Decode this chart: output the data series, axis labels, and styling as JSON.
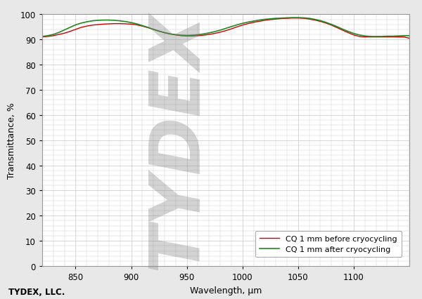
{
  "xlabel": "Wavelength, μm",
  "ylabel": "Transmittance, %",
  "xlim": [
    820,
    1150
  ],
  "ylim": [
    0,
    100
  ],
  "xticks": [
    850,
    900,
    950,
    1000,
    1050,
    1100
  ],
  "yticks": [
    0,
    10,
    20,
    30,
    40,
    50,
    60,
    70,
    80,
    90,
    100
  ],
  "legend_labels": [
    "CQ 1 mm before cryocycling",
    "CQ 1 mm after cryocycling"
  ],
  "line_colors": [
    "#cc0000",
    "#228822"
  ],
  "footer_text": "TYDEX, LLC.",
  "background_color": "#e8e8e8",
  "plot_bg_color": "#ffffff",
  "grid_color": "#c8c8c8",
  "red_x": [
    820,
    825,
    830,
    835,
    840,
    845,
    850,
    855,
    860,
    865,
    870,
    875,
    880,
    885,
    890,
    895,
    900,
    905,
    910,
    915,
    920,
    925,
    930,
    935,
    940,
    945,
    950,
    955,
    960,
    965,
    970,
    975,
    980,
    985,
    990,
    995,
    1000,
    1005,
    1010,
    1015,
    1020,
    1025,
    1030,
    1035,
    1040,
    1045,
    1050,
    1055,
    1060,
    1065,
    1070,
    1075,
    1080,
    1085,
    1090,
    1095,
    1100,
    1105,
    1110,
    1115,
    1120,
    1125,
    1130,
    1135,
    1140,
    1145,
    1150
  ],
  "red_y": [
    91.0,
    91.2,
    91.5,
    92.0,
    92.5,
    93.2,
    94.0,
    94.8,
    95.3,
    95.7,
    95.9,
    96.1,
    96.2,
    96.3,
    96.3,
    96.2,
    96.1,
    95.8,
    95.3,
    94.7,
    94.0,
    93.3,
    92.7,
    92.2,
    91.8,
    91.5,
    91.4,
    91.4,
    91.5,
    91.7,
    92.0,
    92.4,
    92.9,
    93.5,
    94.2,
    95.0,
    95.7,
    96.3,
    96.8,
    97.2,
    97.6,
    97.9,
    98.1,
    98.3,
    98.4,
    98.5,
    98.5,
    98.4,
    98.1,
    97.7,
    97.2,
    96.5,
    95.7,
    94.7,
    93.7,
    92.7,
    91.8,
    91.2,
    91.0,
    91.0,
    91.0,
    91.0,
    91.0,
    91.0,
    91.0,
    91.0,
    90.5
  ],
  "green_x": [
    820,
    825,
    830,
    835,
    840,
    845,
    850,
    855,
    860,
    865,
    870,
    875,
    880,
    885,
    890,
    895,
    900,
    905,
    910,
    915,
    920,
    925,
    930,
    935,
    940,
    945,
    950,
    955,
    960,
    965,
    970,
    975,
    980,
    985,
    990,
    995,
    1000,
    1005,
    1010,
    1015,
    1020,
    1025,
    1030,
    1035,
    1040,
    1045,
    1050,
    1055,
    1060,
    1065,
    1070,
    1075,
    1080,
    1085,
    1090,
    1095,
    1100,
    1105,
    1110,
    1115,
    1120,
    1125,
    1130,
    1135,
    1140,
    1145,
    1150
  ],
  "green_y": [
    91.2,
    91.5,
    92.0,
    92.8,
    93.8,
    94.8,
    95.8,
    96.5,
    97.0,
    97.4,
    97.6,
    97.7,
    97.7,
    97.6,
    97.4,
    97.1,
    96.7,
    96.2,
    95.5,
    94.8,
    94.0,
    93.3,
    92.7,
    92.2,
    91.9,
    91.7,
    91.6,
    91.7,
    91.9,
    92.2,
    92.6,
    93.1,
    93.7,
    94.4,
    95.1,
    95.8,
    96.4,
    96.9,
    97.3,
    97.7,
    98.0,
    98.2,
    98.4,
    98.5,
    98.6,
    98.7,
    98.7,
    98.6,
    98.4,
    98.0,
    97.5,
    96.8,
    96.0,
    95.1,
    94.1,
    93.2,
    92.4,
    91.8,
    91.4,
    91.2,
    91.2,
    91.2,
    91.3,
    91.3,
    91.4,
    91.5,
    91.5
  ]
}
